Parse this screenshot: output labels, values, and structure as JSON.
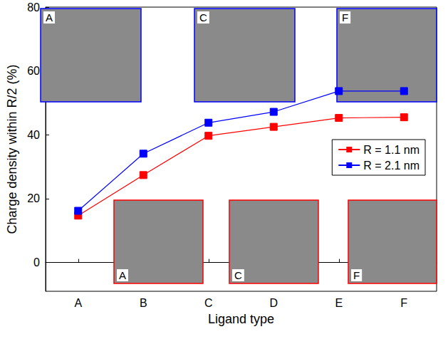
{
  "chart_data": {
    "type": "line",
    "categories": [
      "A",
      "B",
      "C",
      "D",
      "E",
      "F"
    ],
    "series": [
      {
        "name": "R = 1.1 nm",
        "color": "#ff0000",
        "marker": "square",
        "values": [
          14.7,
          27.4,
          39.7,
          42.5,
          45.3,
          45.5
        ]
      },
      {
        "name": "R = 2.1 nm",
        "color": "#0000ff",
        "marker": "square",
        "values": [
          16.2,
          34.1,
          43.8,
          47.2,
          53.7,
          53.7
        ]
      }
    ],
    "xlabel": "Ligand type",
    "ylabel": "Charge density within R/2 (%)",
    "ylim": [
      -9,
      80
    ],
    "yticks": [
      0,
      20,
      40,
      60,
      80
    ],
    "legend": "right",
    "grid": false,
    "annotations": [
      "A",
      "C",
      "F",
      "A",
      "C",
      "F"
    ]
  }
}
